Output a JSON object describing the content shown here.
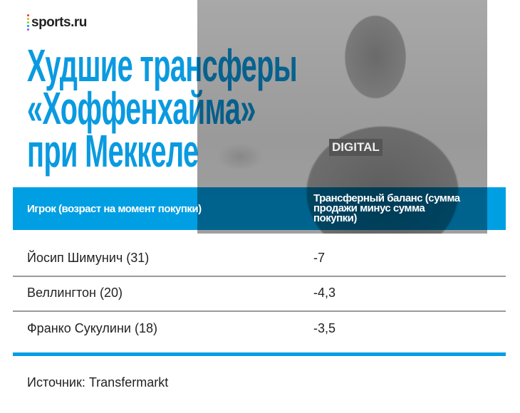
{
  "brand": {
    "logo_text": "sports.ru",
    "dot_colors": [
      "#e5363c",
      "#f5a623",
      "#7ed321",
      "#009fe3",
      "#9b51e0"
    ]
  },
  "title": {
    "lines": [
      "Худшие трансферы",
      "«Хоффенхайма»",
      "при Меккеле"
    ],
    "color": "#0a9ae0"
  },
  "photo": {
    "shirt_text": "DIGITAL"
  },
  "table": {
    "header_color": "#009fe3",
    "columns": [
      "Игрок (возраст на момент покупки)",
      "Трансферный баланс (сумма продажи минус сумма покупки)"
    ],
    "rows": [
      {
        "player": "Йосип Шимунич (31)",
        "balance": "-7"
      },
      {
        "player": "Веллингтон (20)",
        "balance": "-4,3"
      },
      {
        "player": "Франко Сукулини (18)",
        "balance": "-3,5"
      }
    ]
  },
  "source": "Источник: Transfermarkt"
}
